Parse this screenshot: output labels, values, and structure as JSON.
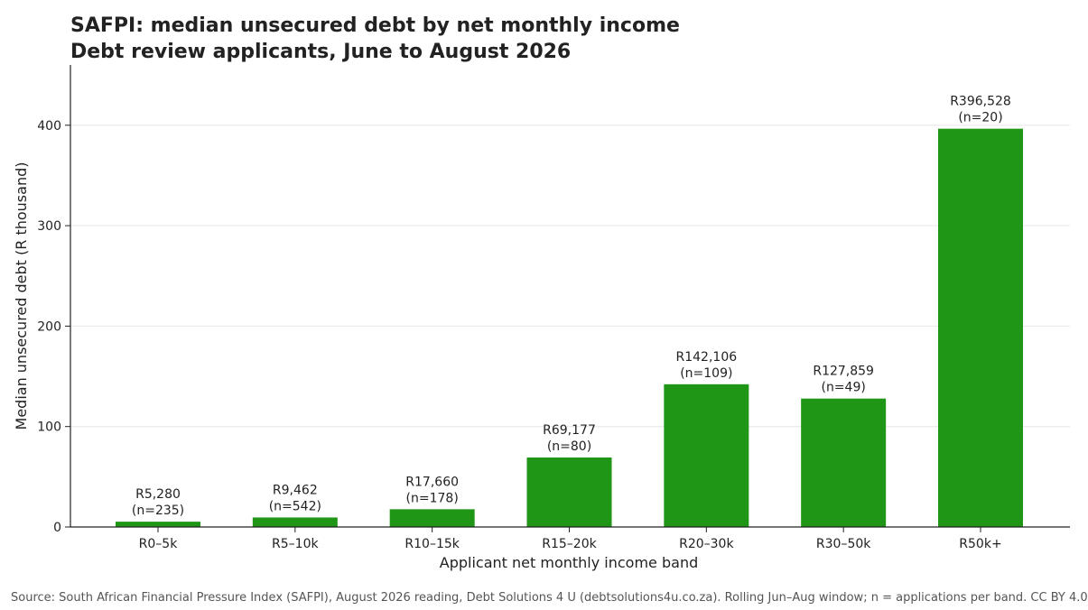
{
  "chart_data": {
    "type": "bar",
    "title": "SAFPI: median unsecured debt by net monthly income",
    "subtitle": "Debt review applicants, June to August 2026",
    "xlabel": "Applicant net monthly income band",
    "ylabel": "Median unsecured debt (R thousand)",
    "categories": [
      "R0–5k",
      "R5–10k",
      "R10–15k",
      "R15–20k",
      "R20–30k",
      "R30–50k",
      "R50k+"
    ],
    "values": [
      5.28,
      9.462,
      17.66,
      69.177,
      142.106,
      127.859,
      396.528
    ],
    "value_labels": [
      "R5,280",
      "R9,462",
      "R17,660",
      "R69,177",
      "R142,106",
      "R127,859",
      "R396,528"
    ],
    "counts": [
      "(n=235)",
      "(n=542)",
      "(n=178)",
      "(n=80)",
      "(n=109)",
      "(n=49)",
      "(n=20)"
    ],
    "ylim": [
      0,
      460
    ],
    "yticks": [
      0,
      100,
      200,
      300,
      400
    ],
    "grid": "horizontal",
    "bar_color": "#1f9616"
  },
  "source": "Source: South African Financial Pressure Index (SAFPI), August 2026 reading, Debt Solutions 4 U (debtsolutions4u.co.za). Rolling Jun–Aug window; n = applications per band. CC BY 4.0"
}
